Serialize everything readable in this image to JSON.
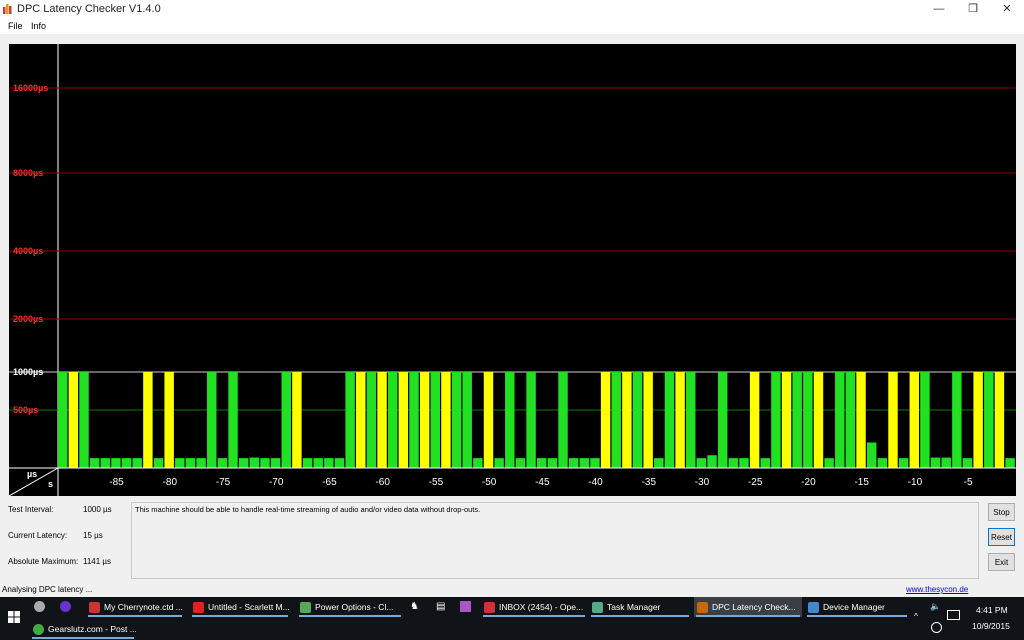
{
  "window": {
    "title": "DPC Latency Checker V1.4.0",
    "minimize_glyph": "—",
    "maximize_glyph": "❐",
    "close_glyph": "✕"
  },
  "menu": [
    "File",
    "Info"
  ],
  "chart_data": {
    "type": "bar",
    "y_scale": "log-like",
    "y_ticks": [
      "16000µs",
      "8000µs",
      "4000µs",
      "2000µs",
      "1000µs",
      "500µs"
    ],
    "x_ticks": [
      "-85",
      "-80",
      "-75",
      "-70",
      "-65",
      "-60",
      "-55",
      "-50",
      "-45",
      "-40",
      "-35",
      "-30",
      "-25",
      "-20",
      "-15",
      "-10",
      "-5"
    ],
    "x_range": [
      -90,
      -1
    ],
    "y_unit_label": "µs",
    "x_unit_label": "s",
    "grid": true,
    "bar_colors": {
      "green": "#22e022",
      "yellow": "#ffff00"
    },
    "bars": [
      {
        "x": -90,
        "value": 1000,
        "color": "green"
      },
      {
        "x": -89,
        "value": 1000,
        "color": "yellow"
      },
      {
        "x": -88,
        "value": 1000,
        "color": "green"
      },
      {
        "x": -87,
        "value": 85,
        "color": "green"
      },
      {
        "x": -86,
        "value": 85,
        "color": "green"
      },
      {
        "x": -85,
        "value": 85,
        "color": "green"
      },
      {
        "x": -84,
        "value": 85,
        "color": "green"
      },
      {
        "x": -83,
        "value": 85,
        "color": "green"
      },
      {
        "x": -82,
        "value": 1000,
        "color": "yellow"
      },
      {
        "x": -81,
        "value": 85,
        "color": "green"
      },
      {
        "x": -80,
        "value": 1000,
        "color": "yellow"
      },
      {
        "x": -79,
        "value": 85,
        "color": "green"
      },
      {
        "x": -78,
        "value": 85,
        "color": "green"
      },
      {
        "x": -77,
        "value": 85,
        "color": "green"
      },
      {
        "x": -76,
        "value": 1000,
        "color": "green"
      },
      {
        "x": -75,
        "value": 85,
        "color": "green"
      },
      {
        "x": -74,
        "value": 1000,
        "color": "green"
      },
      {
        "x": -73,
        "value": 85,
        "color": "green"
      },
      {
        "x": -72,
        "value": 90,
        "color": "green"
      },
      {
        "x": -71,
        "value": 85,
        "color": "green"
      },
      {
        "x": -70,
        "value": 85,
        "color": "green"
      },
      {
        "x": -69,
        "value": 1000,
        "color": "green"
      },
      {
        "x": -68,
        "value": 1000,
        "color": "yellow"
      },
      {
        "x": -67,
        "value": 85,
        "color": "green"
      },
      {
        "x": -66,
        "value": 85,
        "color": "green"
      },
      {
        "x": -65,
        "value": 85,
        "color": "green"
      },
      {
        "x": -64,
        "value": 85,
        "color": "green"
      },
      {
        "x": -63,
        "value": 1000,
        "color": "green"
      },
      {
        "x": -62,
        "value": 1000,
        "color": "yellow"
      },
      {
        "x": -61,
        "value": 1000,
        "color": "green"
      },
      {
        "x": -60,
        "value": 1000,
        "color": "yellow"
      },
      {
        "x": -59,
        "value": 1000,
        "color": "green"
      },
      {
        "x": -58,
        "value": 1000,
        "color": "yellow"
      },
      {
        "x": -57,
        "value": 1000,
        "color": "green"
      },
      {
        "x": -56,
        "value": 1000,
        "color": "yellow"
      },
      {
        "x": -55,
        "value": 1000,
        "color": "green"
      },
      {
        "x": -54,
        "value": 1000,
        "color": "yellow"
      },
      {
        "x": -53,
        "value": 1000,
        "color": "green"
      },
      {
        "x": -52,
        "value": 1000,
        "color": "green"
      },
      {
        "x": -51,
        "value": 85,
        "color": "green"
      },
      {
        "x": -50,
        "value": 1000,
        "color": "yellow"
      },
      {
        "x": -49,
        "value": 85,
        "color": "green"
      },
      {
        "x": -48,
        "value": 1000,
        "color": "green"
      },
      {
        "x": -47,
        "value": 85,
        "color": "green"
      },
      {
        "x": -46,
        "value": 1000,
        "color": "green"
      },
      {
        "x": -45,
        "value": 85,
        "color": "green"
      },
      {
        "x": -44,
        "value": 85,
        "color": "green"
      },
      {
        "x": -43,
        "value": 1000,
        "color": "green"
      },
      {
        "x": -42,
        "value": 85,
        "color": "green"
      },
      {
        "x": -41,
        "value": 85,
        "color": "green"
      },
      {
        "x": -40,
        "value": 85,
        "color": "green"
      },
      {
        "x": -39,
        "value": 1000,
        "color": "yellow"
      },
      {
        "x": -38,
        "value": 1000,
        "color": "green"
      },
      {
        "x": -37,
        "value": 1000,
        "color": "yellow"
      },
      {
        "x": -36,
        "value": 1000,
        "color": "green"
      },
      {
        "x": -35,
        "value": 1000,
        "color": "yellow"
      },
      {
        "x": -34,
        "value": 85,
        "color": "green"
      },
      {
        "x": -33,
        "value": 1000,
        "color": "green"
      },
      {
        "x": -32,
        "value": 1000,
        "color": "yellow"
      },
      {
        "x": -31,
        "value": 1000,
        "color": "green"
      },
      {
        "x": -30,
        "value": 85,
        "color": "green"
      },
      {
        "x": -29,
        "value": 110,
        "color": "green"
      },
      {
        "x": -28,
        "value": 1000,
        "color": "green"
      },
      {
        "x": -27,
        "value": 85,
        "color": "green"
      },
      {
        "x": -26,
        "value": 85,
        "color": "green"
      },
      {
        "x": -25,
        "value": 1000,
        "color": "yellow"
      },
      {
        "x": -24,
        "value": 85,
        "color": "green"
      },
      {
        "x": -23,
        "value": 1000,
        "color": "green"
      },
      {
        "x": -22,
        "value": 1000,
        "color": "yellow"
      },
      {
        "x": -21,
        "value": 1000,
        "color": "green"
      },
      {
        "x": -20,
        "value": 1000,
        "color": "green"
      },
      {
        "x": -19,
        "value": 1000,
        "color": "yellow"
      },
      {
        "x": -18,
        "value": 85,
        "color": "green"
      },
      {
        "x": -17,
        "value": 1000,
        "color": "green"
      },
      {
        "x": -16,
        "value": 1000,
        "color": "green"
      },
      {
        "x": -15,
        "value": 1000,
        "color": "yellow"
      },
      {
        "x": -14,
        "value": 220,
        "color": "green"
      },
      {
        "x": -13,
        "value": 85,
        "color": "green"
      },
      {
        "x": -12,
        "value": 1000,
        "color": "yellow"
      },
      {
        "x": -11,
        "value": 85,
        "color": "green"
      },
      {
        "x": -10,
        "value": 1000,
        "color": "yellow"
      },
      {
        "x": -9,
        "value": 1000,
        "color": "green"
      },
      {
        "x": -8,
        "value": 90,
        "color": "green"
      },
      {
        "x": -7,
        "value": 90,
        "color": "green"
      },
      {
        "x": -6,
        "value": 1000,
        "color": "green"
      },
      {
        "x": -5,
        "value": 85,
        "color": "green"
      },
      {
        "x": -4,
        "value": 1000,
        "color": "yellow"
      },
      {
        "x": -3,
        "value": 1000,
        "color": "green"
      },
      {
        "x": -2,
        "value": 1000,
        "color": "yellow"
      },
      {
        "x": -1,
        "value": 85,
        "color": "green"
      }
    ]
  },
  "info": {
    "test_interval_label": "Test Interval:",
    "test_interval_value": "1000 µs",
    "current_latency_label": "Current Latency:",
    "current_latency_value": "15 µs",
    "absolute_max_label": "Absolute Maximum:",
    "absolute_max_value": "1141 µs",
    "message": "This machine should be able to handle real-time streaming of audio and/or video data without drop-outs."
  },
  "buttons": {
    "stop": "Stop",
    "reset": "Reset",
    "exit": "Exit"
  },
  "status": {
    "text": "Analysing DPC latency ...",
    "link": "www.thesycon.de"
  },
  "taskbar": {
    "row1": [
      {
        "label": "My Cherrynote.ctd ...",
        "color": "#c33",
        "active": false
      },
      {
        "label": "Untitled - Scarlett M...",
        "color": "#d22",
        "active": false
      },
      {
        "label": "Power Options - Cl...",
        "color": "#5a5",
        "active": false
      },
      {
        "label": "INBOX (2454) - Ope...",
        "color": "#c33",
        "active": false
      },
      {
        "label": "Task Manager",
        "color": "#5a8",
        "active": false
      },
      {
        "label": "DPC Latency Check...",
        "color": "#c60",
        "active": true
      },
      {
        "label": "Device Manager",
        "color": "#48c",
        "active": false
      }
    ],
    "row2": [
      {
        "label": "Gearslutz.com - Post ...",
        "color": "#4a4",
        "active": false
      }
    ],
    "clock_time": "4:41 PM",
    "clock_date": "10/9/2015"
  }
}
